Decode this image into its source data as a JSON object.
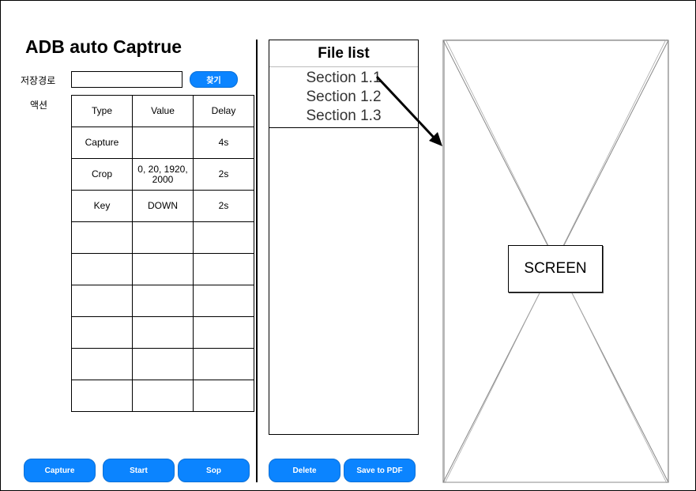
{
  "app": {
    "title": "ADB auto Captrue"
  },
  "path": {
    "label": "저장경로",
    "value": "",
    "find_button": "찾기"
  },
  "actions": {
    "label": "액션",
    "columns": [
      "Type",
      "Value",
      "Delay"
    ],
    "rows": [
      {
        "type": "Capture",
        "value": "",
        "delay": "4s"
      },
      {
        "type": "Crop",
        "value": "0, 20, 1920, 2000",
        "delay": "2s"
      },
      {
        "type": "Key",
        "value": "DOWN",
        "delay": "2s"
      },
      {
        "type": "",
        "value": "",
        "delay": ""
      },
      {
        "type": "",
        "value": "",
        "delay": ""
      },
      {
        "type": "",
        "value": "",
        "delay": ""
      },
      {
        "type": "",
        "value": "",
        "delay": ""
      },
      {
        "type": "",
        "value": "",
        "delay": ""
      },
      {
        "type": "",
        "value": "",
        "delay": ""
      }
    ]
  },
  "file_list": {
    "title": "File list",
    "items": [
      "Section 1.1",
      "Section 1.2",
      "Section 1.3"
    ]
  },
  "screen": {
    "label": "SCREEN"
  },
  "buttons": {
    "capture": "Capture",
    "start": "Start",
    "stop": "Sop",
    "delete": "Delete",
    "save_pdf": "Save to PDF"
  },
  "colors": {
    "button": "#0b84ff",
    "button_text": "#ffffff",
    "screen_lines": "#888888"
  }
}
